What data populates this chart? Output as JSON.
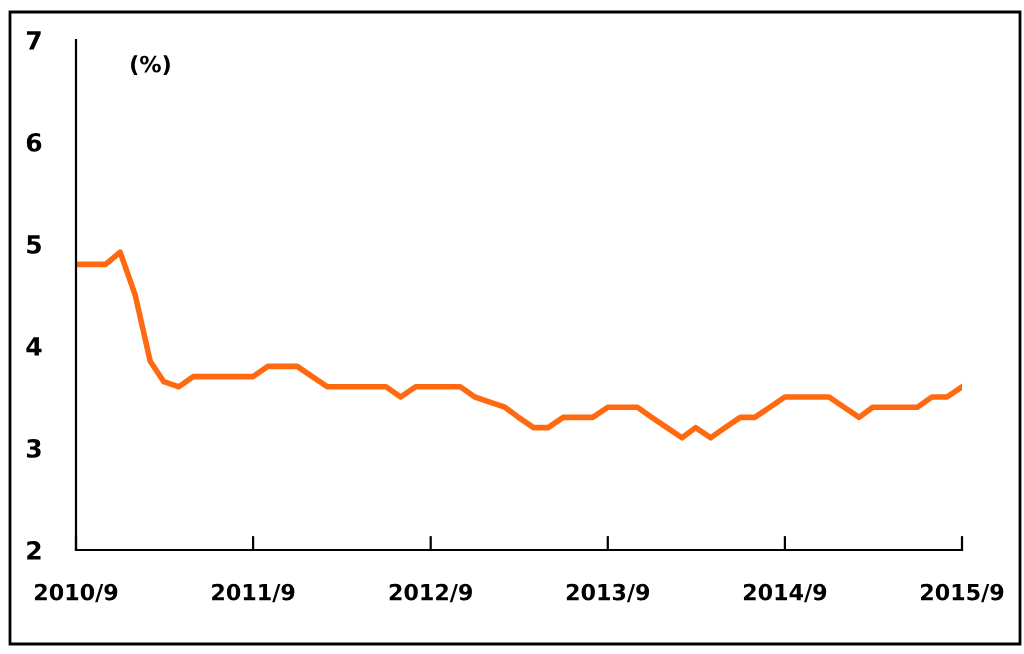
{
  "chart_data": {
    "type": "line",
    "annotations": [
      "(%)"
    ],
    "x": [
      "2010-09",
      "2010-10",
      "2010-11",
      "2010-12",
      "2011-01",
      "2011-02",
      "2011-03",
      "2011-04",
      "2011-05",
      "2011-06",
      "2011-07",
      "2011-08",
      "2011-09",
      "2011-10",
      "2011-11",
      "2011-12",
      "2012-01",
      "2012-02",
      "2012-03",
      "2012-04",
      "2012-05",
      "2012-06",
      "2012-07",
      "2012-08",
      "2012-09",
      "2012-10",
      "2012-11",
      "2012-12",
      "2013-01",
      "2013-02",
      "2013-03",
      "2013-04",
      "2013-05",
      "2013-06",
      "2013-07",
      "2013-08",
      "2013-09",
      "2013-10",
      "2013-11",
      "2013-12",
      "2014-01",
      "2014-02",
      "2014-03",
      "2014-04",
      "2014-05",
      "2014-06",
      "2014-07",
      "2014-08",
      "2014-09",
      "2014-10",
      "2014-11",
      "2014-12",
      "2015-01",
      "2015-02",
      "2015-03",
      "2015-04",
      "2015-05",
      "2015-06",
      "2015-07",
      "2015-08",
      "2015-09"
    ],
    "series": [
      {
        "color": "#ff6a10",
        "values": [
          4.8,
          4.8,
          4.8,
          4.92,
          4.5,
          3.85,
          3.65,
          3.6,
          3.7,
          3.7,
          3.7,
          3.7,
          3.7,
          3.8,
          3.8,
          3.8,
          3.7,
          3.6,
          3.6,
          3.6,
          3.6,
          3.6,
          3.5,
          3.6,
          3.6,
          3.6,
          3.6,
          3.5,
          3.45,
          3.4,
          3.3,
          3.2,
          3.2,
          3.3,
          3.3,
          3.3,
          3.4,
          3.4,
          3.4,
          3.3,
          3.2,
          3.1,
          3.2,
          3.1,
          3.2,
          3.3,
          3.3,
          3.4,
          3.5,
          3.5,
          3.5,
          3.5,
          3.4,
          3.3,
          3.4,
          3.4,
          3.4,
          3.4,
          3.5,
          3.5,
          3.6
        ]
      }
    ],
    "xlim": [
      "2010-09",
      "2015-09"
    ],
    "xticks": [
      {
        "value": "2010-09",
        "label": "2010/9"
      },
      {
        "value": "2011-09",
        "label": "2011/9"
      },
      {
        "value": "2012-09",
        "label": "2012/9"
      },
      {
        "value": "2013-09",
        "label": "2013/9"
      },
      {
        "value": "2014-09",
        "label": "2014/9"
      },
      {
        "value": "2015-09",
        "label": "2015/9"
      }
    ],
    "ylim": [
      2,
      7
    ],
    "yticks": [
      2,
      3,
      4,
      5,
      6,
      7
    ],
    "grid": false,
    "legend": false,
    "marker": "none",
    "line_style": "solid"
  }
}
